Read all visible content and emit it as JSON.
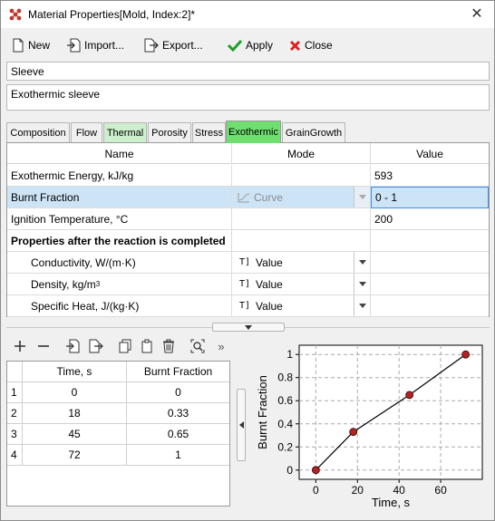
{
  "window": {
    "title": "Material Properties[Mold, Index:2]*"
  },
  "toolbar": {
    "new_label": "New",
    "import_label": "Import...",
    "export_label": "Export...",
    "apply_label": "Apply",
    "close_label": "Close"
  },
  "material": {
    "name": "Sleeve",
    "description": "Exothermic sleeve"
  },
  "tabs": [
    "Composition",
    "Flow",
    "Thermal",
    "Porosity",
    "Stress",
    "Exothermic",
    "GrainGrowth"
  ],
  "grid": {
    "headers": {
      "name": "Name",
      "mode": "Mode",
      "value": "Value"
    },
    "rows": [
      {
        "name": "Exothermic Energy, kJ/kg",
        "mode": "",
        "value": "593"
      },
      {
        "name": "Burnt Fraction",
        "mode": "Curve",
        "value": "0 - 1"
      },
      {
        "name": "Ignition Temperature, °C",
        "mode": "",
        "value": "200"
      },
      {
        "name": "Properties after the reaction is completed",
        "mode": "",
        "value": ""
      },
      {
        "name": "Conductivity, W/(m·K)",
        "mode": "Value",
        "value": ""
      },
      {
        "name": "Density, kg/m",
        "sup": "3",
        "mode": "Value",
        "value": ""
      },
      {
        "name": "Specific Heat, J/(kg·K)",
        "mode": "Value",
        "value": ""
      }
    ]
  },
  "point_table": {
    "headers": {
      "time": "Time, s",
      "fraction": "Burnt Fraction"
    },
    "rows": [
      {
        "n": "1",
        "time": "0",
        "fraction": "0"
      },
      {
        "n": "2",
        "time": "18",
        "fraction": "0.33"
      },
      {
        "n": "3",
        "time": "45",
        "fraction": "0.65"
      },
      {
        "n": "4",
        "time": "72",
        "fraction": "1"
      }
    ]
  },
  "chart_data": {
    "type": "line",
    "x": [
      0,
      18,
      45,
      72
    ],
    "series": [
      {
        "values": [
          0,
          0.33,
          0.65,
          1
        ]
      }
    ],
    "xlabel": "Time, s",
    "ylabel": "Burnt Fraction",
    "xlim": [
      -8,
      80
    ],
    "ylim": [
      -0.08,
      1.08
    ],
    "xticks": [
      "0",
      "20",
      "40",
      "60"
    ],
    "yticks": [
      "0",
      "0.2",
      "0.4",
      "0.6",
      "0.8",
      "1"
    ],
    "grid": true,
    "line_color": "#000000",
    "marker_color": "#b22222"
  },
  "icons": {
    "more": "»"
  }
}
